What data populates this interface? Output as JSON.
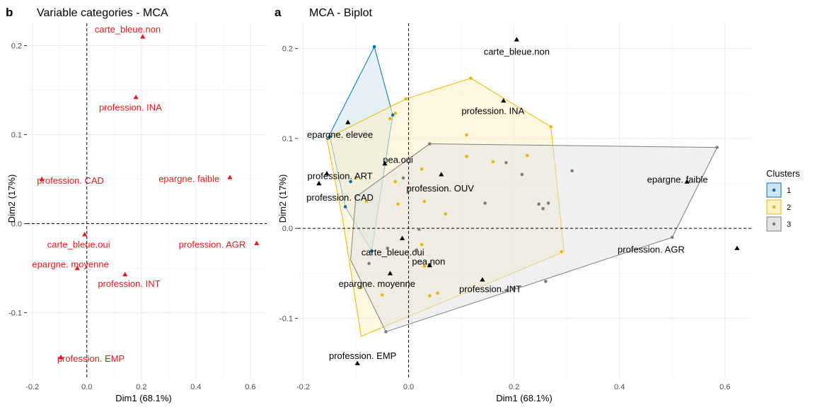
{
  "chart_data": [
    {
      "type": "scatter",
      "tag": "b",
      "title": "Variable categories - MCA",
      "xlabel": "Dim1 (68.1%)",
      "ylabel": "Dim2 (17%)",
      "xlim": [
        -0.22,
        0.66
      ],
      "ylim": [
        -0.175,
        0.225
      ],
      "xticks": [
        -0.2,
        0,
        0.2,
        0.4,
        0.6
      ],
      "xtick_labels": [
        "-0.2",
        "0.0",
        "0.2",
        "0.4",
        "0.6"
      ],
      "yticks": [
        -0.1,
        0,
        0.1,
        0.2
      ],
      "ytick_labels": [
        "-0.1",
        "0.0",
        "0.1",
        "0.2"
      ],
      "color": "#e41a1c",
      "points": [
        {
          "label": "carte_bleue.non",
          "x": 0.205,
          "y": 0.21,
          "lx": 0.15,
          "ly": 0.218
        },
        {
          "label": "profession. INA",
          "x": 0.18,
          "y": 0.142,
          "lx": 0.16,
          "ly": 0.13
        },
        {
          "label": "profession. CAD",
          "x": -0.165,
          "y": 0.05,
          "lx": -0.06,
          "ly": 0.048
        },
        {
          "label": "epargne. faible",
          "x": 0.525,
          "y": 0.052,
          "lx": 0.375,
          "ly": 0.05
        },
        {
          "label": "carte_bleue.oui",
          "x": -0.008,
          "y": -0.012,
          "lx": -0.03,
          "ly": -0.024
        },
        {
          "label": "profession. AGR",
          "x": 0.623,
          "y": -0.022,
          "lx": 0.46,
          "ly": -0.024
        },
        {
          "label": "epargne. moyenne",
          "x": -0.035,
          "y": -0.05,
          "lx": -0.06,
          "ly": -0.046
        },
        {
          "label": "profession. INT",
          "x": 0.14,
          "y": -0.057,
          "lx": 0.155,
          "ly": -0.068
        },
        {
          "label": "profession. EMP",
          "x": -0.095,
          "y": -0.15,
          "lx": 0.015,
          "ly": -0.152
        }
      ]
    },
    {
      "type": "scatter",
      "tag": "a",
      "title": "MCA - Biplot",
      "xlabel": "Dim1 (68.1%)",
      "ylabel": "Dim2 (17%)",
      "xlim": [
        -0.21,
        0.65
      ],
      "ylim": [
        -0.168,
        0.228
      ],
      "xticks": [
        -0.2,
        0,
        0.2,
        0.4,
        0.6
      ],
      "xtick_labels": [
        "-0.2",
        "0.0",
        "0.2",
        "0.4",
        "0.6"
      ],
      "yticks": [
        -0.1,
        0,
        0.1,
        0.2
      ],
      "ytick_labels": [
        "-0.1",
        "0.0",
        "0.1",
        "0.2"
      ],
      "legend": {
        "title": "Clusters",
        "position": "right",
        "entries": [
          {
            "name": "1",
            "color": "#0072b2",
            "fill": "#cfe3f1"
          },
          {
            "name": "2",
            "color": "#e7b800",
            "fill": "#fbf1c6"
          },
          {
            "name": "3",
            "color": "#7f7f7f",
            "fill": "#e3e3e3"
          }
        ]
      },
      "hulls": [
        {
          "cluster": "1",
          "points": [
            [
              -0.065,
              0.202
            ],
            [
              -0.03,
              0.126
            ],
            [
              -0.07,
              -0.025
            ],
            [
              -0.12,
              0.024
            ],
            [
              -0.15,
              0.104
            ]
          ]
        },
        {
          "cluster": "2",
          "points": [
            [
              0.118,
              0.167
            ],
            [
              0.27,
              0.113
            ],
            [
              0.295,
              -0.026
            ],
            [
              -0.09,
              -0.12
            ],
            [
              -0.125,
              0.01
            ],
            [
              -0.155,
              0.1
            ],
            [
              -0.005,
              0.144
            ]
          ]
        },
        {
          "cluster": "3",
          "points": [
            [
              0.585,
              0.09
            ],
            [
              0.5,
              -0.01
            ],
            [
              -0.043,
              -0.115
            ],
            [
              -0.11,
              -0.035
            ],
            [
              -0.1,
              0.035
            ],
            [
              0.04,
              0.094
            ]
          ]
        }
      ],
      "series": [
        {
          "name": "1",
          "points": [
            [
              -0.065,
              0.202
            ],
            [
              -0.03,
              0.126
            ],
            [
              -0.15,
              0.102
            ],
            [
              -0.11,
              0.052
            ],
            [
              -0.12,
              0.024
            ],
            [
              -0.07,
              -0.025
            ]
          ]
        },
        {
          "name": "2",
          "points": [
            [
              0.118,
              0.167
            ],
            [
              0.27,
              0.113
            ],
            [
              -0.005,
              0.144
            ],
            [
              -0.025,
              0.128
            ],
            [
              -0.035,
              0.122
            ],
            [
              0.11,
              0.104
            ],
            [
              0.11,
              0.08
            ],
            [
              0.225,
              0.081
            ],
            [
              0.025,
              0.066
            ],
            [
              -0.1,
              0.056
            ],
            [
              0.16,
              0.074
            ],
            [
              -0.025,
              0.052
            ],
            [
              -0.08,
              0.03
            ],
            [
              -0.02,
              0.027
            ],
            [
              0.03,
              0.03
            ],
            [
              0.07,
              0.016
            ],
            [
              0.29,
              -0.026
            ],
            [
              0.025,
              -0.018
            ],
            [
              0.03,
              -0.042
            ],
            [
              0.04,
              -0.075
            ],
            [
              -0.09,
              -0.066
            ],
            [
              -0.05,
              -0.074
            ],
            [
              0.055,
              -0.072
            ]
          ]
        },
        {
          "name": "3",
          "points": [
            [
              0.585,
              0.09
            ],
            [
              0.31,
              0.064
            ],
            [
              0.185,
              0.073
            ],
            [
              0.215,
              0.06
            ],
            [
              0.04,
              0.094
            ],
            [
              -0.01,
              0.056
            ],
            [
              0.145,
              0.028
            ],
            [
              0.255,
              0.022
            ],
            [
              0.247,
              0.027
            ],
            [
              0.265,
              0.028
            ],
            [
              0.5,
              -0.01
            ],
            [
              0.02,
              -0.001
            ],
            [
              0.015,
              -0.024
            ],
            [
              0.26,
              -0.059
            ],
            [
              0.2,
              -0.066
            ],
            [
              0.185,
              -0.069
            ],
            [
              -0.04,
              -0.022
            ],
            [
              -0.075,
              -0.039
            ],
            [
              -0.043,
              -0.115
            ]
          ]
        }
      ],
      "variables": [
        {
          "label": "carte_bleue.non",
          "x": 0.205,
          "y": 0.21,
          "lx": 0.205,
          "ly": 0.196
        },
        {
          "label": "profession. INA",
          "x": 0.18,
          "y": 0.142,
          "lx": 0.16,
          "ly": 0.13
        },
        {
          "label": "epargne. elevee",
          "x": -0.115,
          "y": 0.118,
          "lx": -0.13,
          "ly": 0.104
        },
        {
          "label": "pea.oui",
          "x": -0.045,
          "y": 0.072,
          "lx": -0.02,
          "ly": 0.076
        },
        {
          "label": "profession. ART",
          "x": -0.155,
          "y": 0.061,
          "lx": -0.13,
          "ly": 0.058
        },
        {
          "label": "profession. OUV",
          "x": 0.062,
          "y": 0.06,
          "lx": 0.06,
          "ly": 0.044
        },
        {
          "label": "profession. CAD",
          "x": -0.17,
          "y": 0.05,
          "lx": -0.13,
          "ly": 0.034
        },
        {
          "label": "epargne. faible",
          "x": 0.528,
          "y": 0.052,
          "lx": 0.51,
          "ly": 0.054
        },
        {
          "label": "carte_bleue.oui",
          "x": -0.012,
          "y": -0.011,
          "lx": -0.03,
          "ly": -0.027
        },
        {
          "label": "pea.non",
          "x": 0.04,
          "y": -0.041,
          "lx": 0.038,
          "ly": -0.037
        },
        {
          "label": "profession. AGR",
          "x": 0.623,
          "y": -0.022,
          "lx": 0.46,
          "ly": -0.024
        },
        {
          "label": "epargne. moyenne",
          "x": -0.035,
          "y": -0.05,
          "lx": -0.06,
          "ly": -0.062
        },
        {
          "label": "profession. INT",
          "x": 0.14,
          "y": -0.057,
          "lx": 0.155,
          "ly": -0.068
        },
        {
          "label": "profession. EMP",
          "x": -0.097,
          "y": -0.15,
          "lx": -0.087,
          "ly": -0.142
        }
      ]
    }
  ]
}
